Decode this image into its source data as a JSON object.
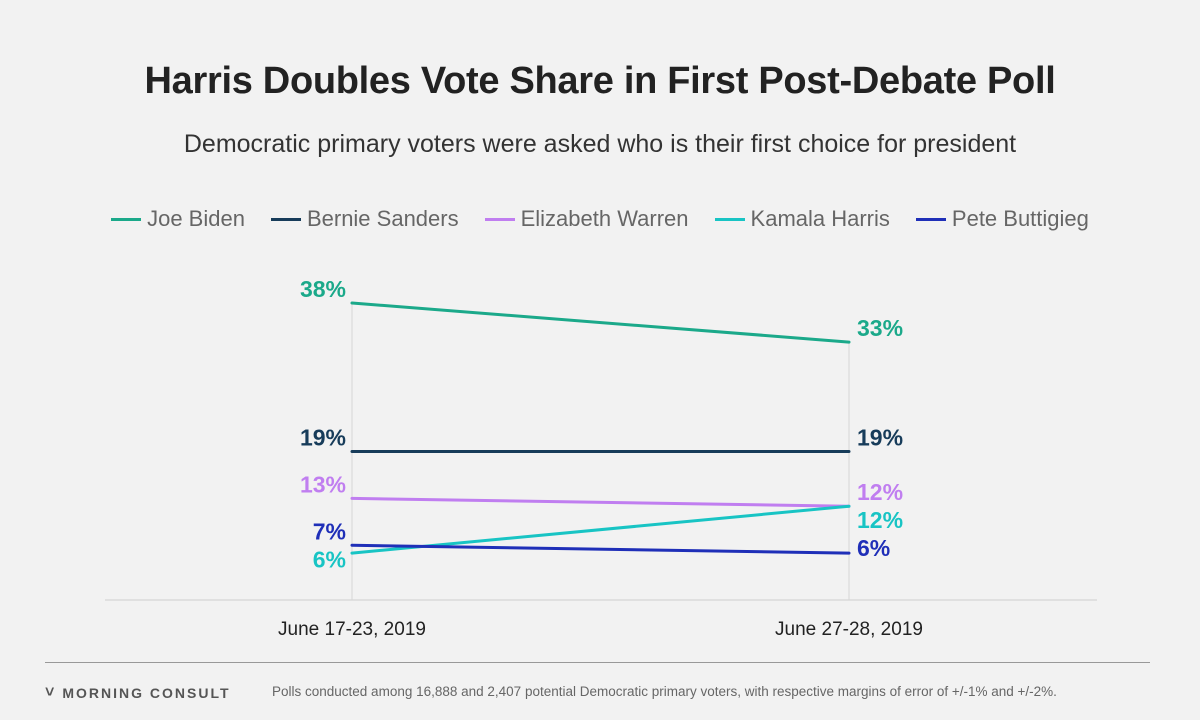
{
  "title": "Harris Doubles Vote Share in First Post-Debate Poll",
  "subtitle": "Democratic primary voters were asked who is their first choice for president",
  "footer": {
    "brand": "MORNING CONSULT",
    "brand_icon": "morning-consult-logo-icon",
    "note": "Polls conducted among 16,888 and 2,407 potential Democratic primary voters, with respective margins of error of +/-1% and +/-2%."
  },
  "chart_data": {
    "type": "line",
    "categories": [
      "June 17-23, 2019",
      "June 27-28, 2019"
    ],
    "series": [
      {
        "name": "Joe Biden",
        "values": [
          38,
          33
        ],
        "labels": [
          "38%",
          "33%"
        ],
        "color": "#1ba98a"
      },
      {
        "name": "Bernie Sanders",
        "values": [
          19,
          19
        ],
        "labels": [
          "19%",
          "19%"
        ],
        "color": "#173c5a"
      },
      {
        "name": "Elizabeth Warren",
        "values": [
          13,
          12
        ],
        "labels": [
          "13%",
          "12%"
        ],
        "color": "#c07ef0"
      },
      {
        "name": "Kamala Harris",
        "values": [
          6,
          12
        ],
        "labels": [
          "6%",
          "12%"
        ],
        "color": "#18c4c4"
      },
      {
        "name": "Pete Buttigieg",
        "values": [
          7,
          6
        ],
        "labels": [
          "7%",
          "6%"
        ],
        "color": "#1f2fb8"
      }
    ],
    "ylim": [
      0,
      38
    ],
    "legend_position": "top-center",
    "grid": false
  }
}
